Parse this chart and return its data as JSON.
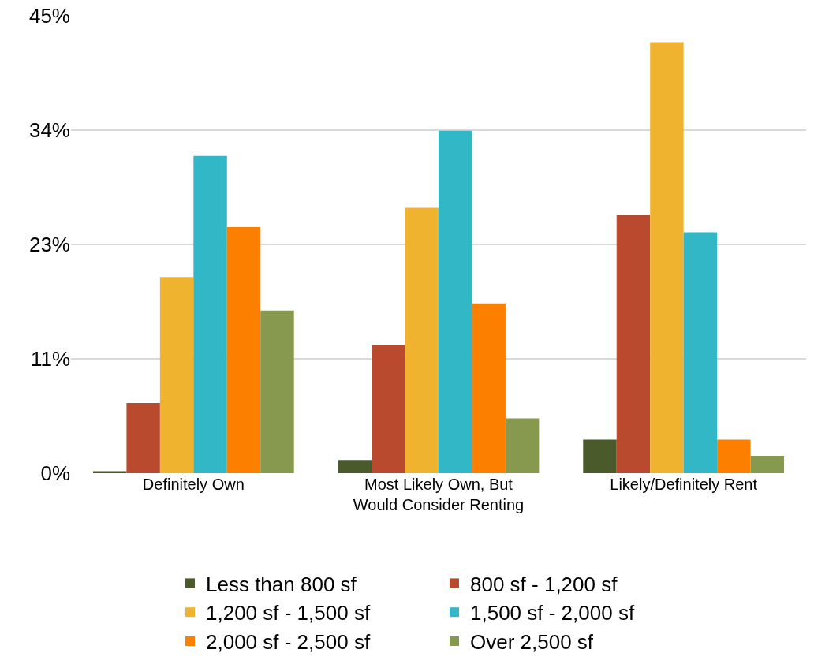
{
  "chart_data": {
    "type": "bar",
    "categories": [
      "Definitely Own",
      "Most Likely Own, But Would Consider Renting",
      "Likely/Definitely Rent"
    ],
    "series": [
      {
        "name": "Less than 800 sf",
        "color": "#4a5a2a",
        "values": [
          0.2,
          1.3,
          3.3
        ]
      },
      {
        "name": "800 sf - 1,200 sf",
        "color": "#b94a2e",
        "values": [
          6.9,
          12.6,
          25.4
        ]
      },
      {
        "name": "1,200 sf - 1,500 sf",
        "color": "#efb32f",
        "values": [
          19.3,
          26.1,
          42.4
        ]
      },
      {
        "name": "1,500 sf - 2,000 sf",
        "color": "#31b7c5",
        "values": [
          31.2,
          33.7,
          23.7
        ]
      },
      {
        "name": "2,000 sf - 2,500 sf",
        "color": "#fd7f00",
        "values": [
          24.2,
          16.7,
          3.3
        ]
      },
      {
        "name": "Over 2,500 sf",
        "color": "#87994f",
        "values": [
          16.0,
          5.4,
          1.7
        ]
      }
    ],
    "ylim": [
      0,
      45
    ],
    "yticks": [
      {
        "value": 0,
        "label": "0%"
      },
      {
        "value": 11.25,
        "label": "11%"
      },
      {
        "value": 22.5,
        "label": "23%"
      },
      {
        "value": 33.75,
        "label": "34%"
      },
      {
        "value": 45,
        "label": "45%"
      }
    ],
    "grid": "y",
    "legend": "bottom"
  }
}
